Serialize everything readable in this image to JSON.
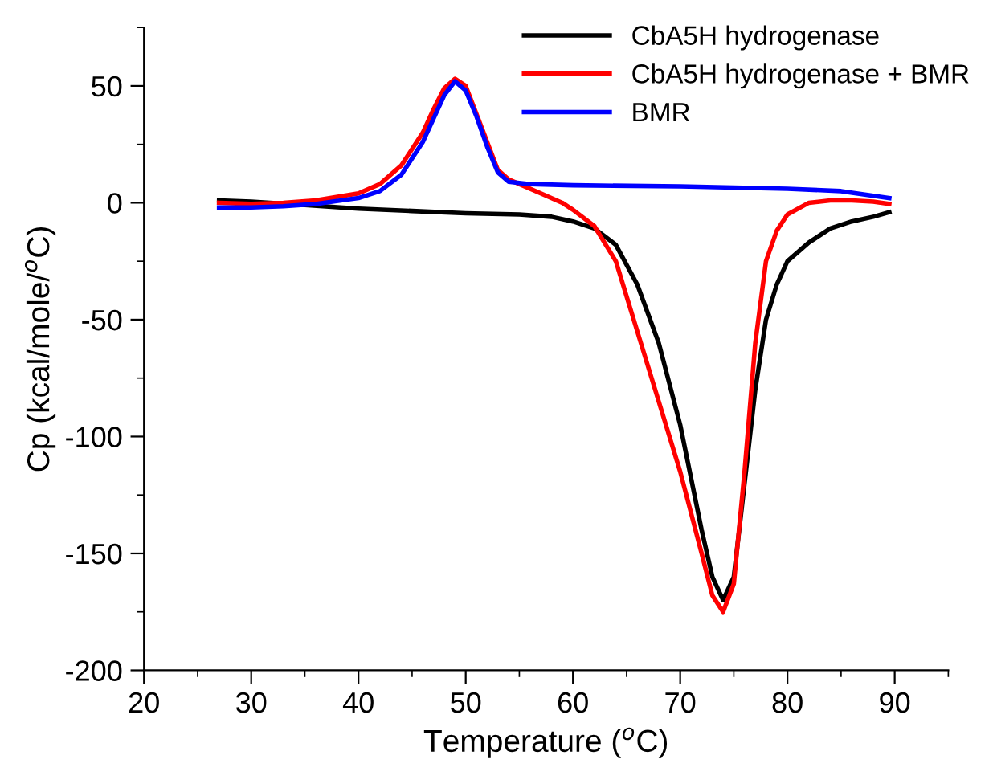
{
  "chart_data": {
    "type": "line",
    "xlabel": "Temperature ($^{o}$C)",
    "ylabel": "Cp (kcal/mole/$^{o}$C)",
    "xlim": [
      20,
      95
    ],
    "xticks": [
      20,
      30,
      40,
      50,
      60,
      70,
      80,
      90
    ],
    "ylim": [
      -200,
      75
    ],
    "yticks": [
      -200,
      -150,
      -100,
      -50,
      0,
      50
    ],
    "grid": false,
    "legend": "top right",
    "marker": "none",
    "line_style": "solid",
    "series": [
      {
        "name": "CbA5H hydrogenase",
        "color": "#000000",
        "x": [
          27,
          30,
          35,
          40,
          45,
          50,
          55,
          58,
          60,
          62,
          64,
          66,
          68,
          70,
          72,
          73,
          74,
          75,
          76,
          77,
          78,
          79,
          80,
          82,
          84,
          86,
          88,
          89.5
        ],
        "values": [
          1,
          0.5,
          -1,
          -2.5,
          -3.5,
          -4.5,
          -5,
          -6,
          -8,
          -11,
          -18,
          -35,
          -60,
          -95,
          -140,
          -160,
          -170,
          -160,
          -120,
          -80,
          -50,
          -35,
          -25,
          -17,
          -11,
          -8,
          -6,
          -4
        ]
      },
      {
        "name": "CbA5H hydrogenase + BMR",
        "color": "#ff0000",
        "x": [
          27,
          30,
          33,
          36,
          40,
          42,
          44,
          46,
          47,
          48,
          49,
          50,
          51,
          52,
          53,
          54,
          55,
          57,
          59,
          60,
          62,
          64,
          66,
          68,
          70,
          72,
          73,
          74,
          75,
          76,
          77,
          78,
          79,
          80,
          82,
          84,
          86,
          88,
          89.5
        ],
        "values": [
          0,
          -0.5,
          0,
          1,
          4,
          8,
          16,
          30,
          40,
          49,
          53,
          50,
          38,
          26,
          14,
          10,
          8,
          4,
          0,
          -3,
          -10,
          -25,
          -55,
          -85,
          -115,
          -150,
          -168,
          -175,
          -163,
          -115,
          -60,
          -25,
          -12,
          -5,
          0,
          1,
          1,
          0.5,
          -0.5
        ]
      },
      {
        "name": "BMR",
        "color": "#0000ff",
        "x": [
          27,
          30,
          33,
          36,
          40,
          42,
          44,
          46,
          47,
          48,
          49,
          50,
          51,
          52,
          53,
          54,
          56,
          60,
          70,
          80,
          85,
          88,
          89.5
        ],
        "values": [
          -2,
          -2,
          -1.5,
          -0.5,
          2,
          5,
          12,
          26,
          36,
          46,
          52,
          48,
          37,
          24,
          13,
          9,
          8,
          7.5,
          7,
          6,
          5,
          3,
          2
        ]
      }
    ]
  }
}
